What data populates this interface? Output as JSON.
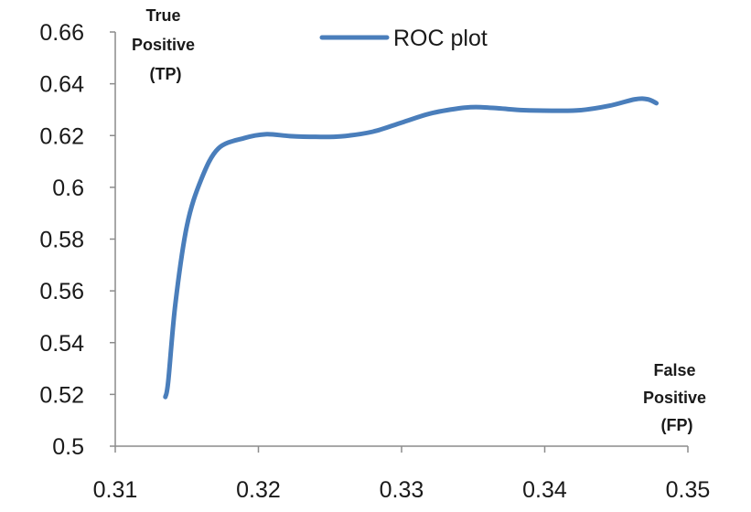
{
  "chart_data": {
    "type": "line",
    "title": "",
    "xlim": [
      0.31,
      0.35
    ],
    "ylim": [
      0.5,
      0.66
    ],
    "xticks": [
      0.31,
      0.32,
      0.33,
      0.34,
      0.35
    ],
    "xtick_labels": [
      "0.31",
      "0.32",
      "0.33",
      "0.34",
      "0.35"
    ],
    "yticks": [
      0.5,
      0.52,
      0.54,
      0.56,
      0.58,
      0.6,
      0.62,
      0.64,
      0.66
    ],
    "ytick_labels": [
      "0.5",
      "0.52",
      "0.54",
      "0.56",
      "0.58",
      "0.6",
      "0.62",
      "0.64",
      "0.66"
    ],
    "ylabel_lines": [
      "True",
      "Positive",
      "(TP)"
    ],
    "xlabel_lines": [
      "False",
      "Positive",
      "(FP)"
    ],
    "grid": false,
    "legend": "top-center",
    "series": [
      {
        "name": "ROC plot",
        "color": "#4a7ebb",
        "x": [
          0.3135,
          0.3137,
          0.3142,
          0.315,
          0.316,
          0.3172,
          0.319,
          0.3205,
          0.3222,
          0.324,
          0.3258,
          0.328,
          0.33,
          0.332,
          0.334,
          0.3352,
          0.3368,
          0.3385,
          0.3405,
          0.3425,
          0.3445,
          0.3463,
          0.3472,
          0.3478
        ],
        "y": [
          0.519,
          0.525,
          0.555,
          0.585,
          0.603,
          0.615,
          0.619,
          0.6205,
          0.6198,
          0.6195,
          0.6197,
          0.6215,
          0.625,
          0.6285,
          0.6305,
          0.631,
          0.6305,
          0.6298,
          0.6296,
          0.6298,
          0.6315,
          0.634,
          0.634,
          0.6325
        ]
      }
    ]
  }
}
